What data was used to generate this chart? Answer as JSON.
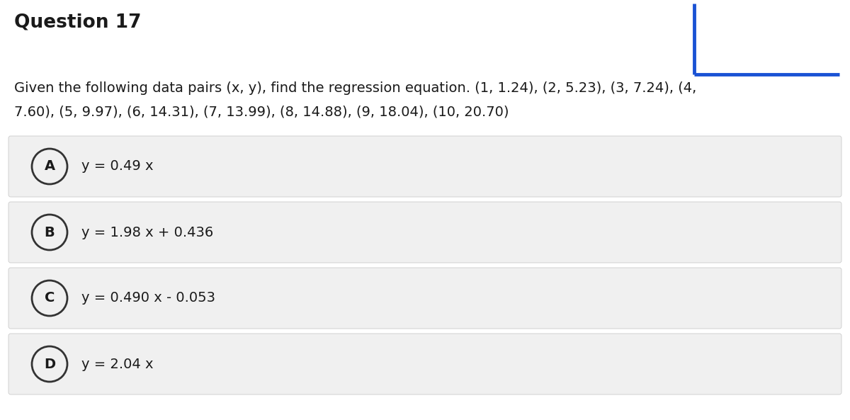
{
  "title": "Question 17",
  "question_text_line1": "Given the following data pairs (x, y), find the regression equation. (1, 1.24), (2, 5.23), (3, 7.24), (4,",
  "question_text_line2": "7.60), (5, 9.97), (6, 14.31), (7, 13.99), (8, 14.88), (9, 18.04), (10, 20.70)",
  "options": [
    {
      "label": "A",
      "text": "y = 0.49 x"
    },
    {
      "label": "B",
      "text": "y = 1.98 x + 0.436"
    },
    {
      "label": "C",
      "text": "y = 0.490 x - 0.053"
    },
    {
      "label": "D",
      "text": "y = 2.04 x"
    }
  ],
  "bg_color": "#ffffff",
  "option_bg_color": "#f0f0f0",
  "option_border_color": "#cccccc",
  "title_fontsize": 19,
  "question_fontsize": 14,
  "option_fontsize": 14,
  "blue_line_color": "#1a52d4",
  "title_font_weight": "bold",
  "text_color": "#1a1a1a",
  "circle_color": "#333333"
}
